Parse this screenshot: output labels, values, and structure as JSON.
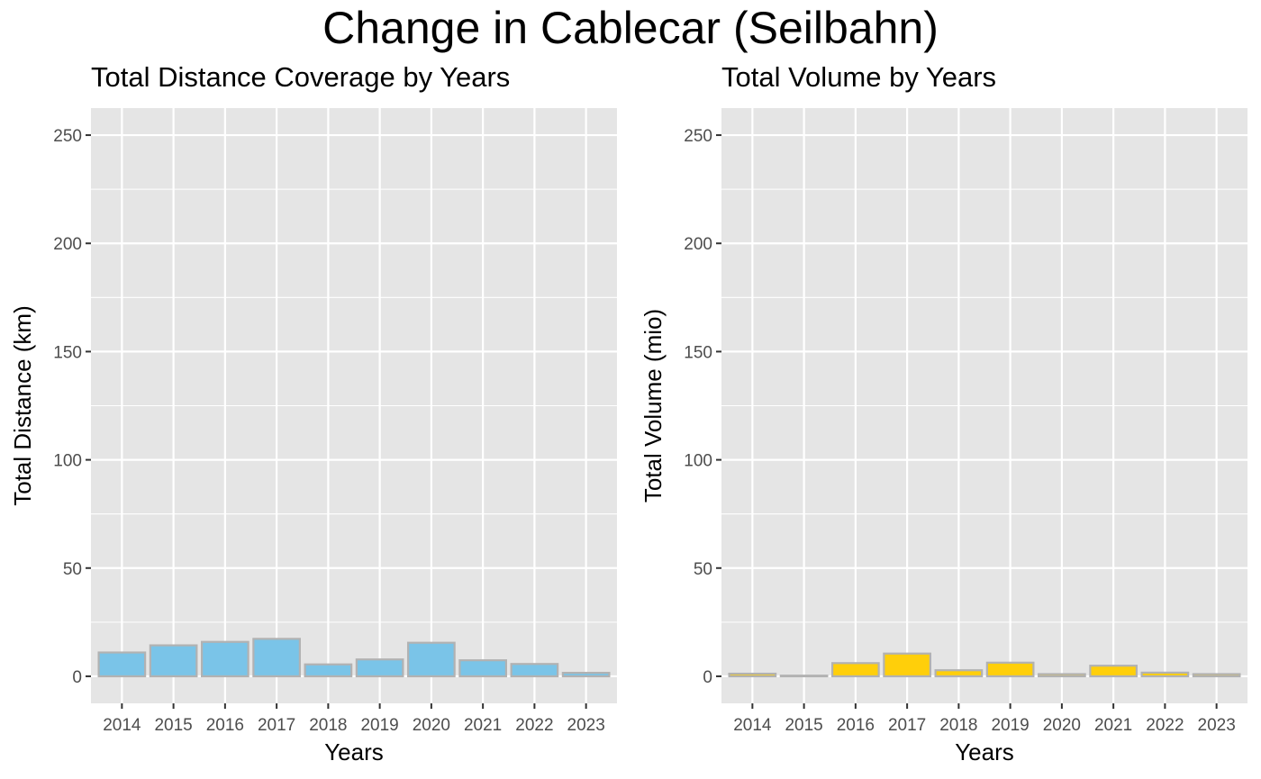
{
  "figure_title": "Change in Cablecar (Seilbahn)",
  "chart_data": [
    {
      "type": "bar",
      "title": "Total Distance Coverage by Years",
      "xlabel": "Years",
      "ylabel": "Total Distance (km)",
      "categories": [
        "2014",
        "2015",
        "2016",
        "2017",
        "2018",
        "2019",
        "2020",
        "2021",
        "2022",
        "2023"
      ],
      "values": [
        11,
        14.3,
        15.9,
        17.3,
        5.5,
        7.8,
        15.5,
        7.4,
        5.7,
        1.6
      ],
      "ylim": [
        -12.5,
        262.5
      ],
      "yticks": [
        0,
        50,
        100,
        150,
        200,
        250
      ],
      "grid": true,
      "bar_fill": "#7ac4e8",
      "bar_outline": "#b2b2b2",
      "panel_bg": "#e5e5e5"
    },
    {
      "type": "bar",
      "title": "Total Volume by Years",
      "xlabel": "Years",
      "ylabel": "Total Volume (mio)",
      "categories": [
        "2014",
        "2015",
        "2016",
        "2017",
        "2018",
        "2019",
        "2020",
        "2021",
        "2022",
        "2023"
      ],
      "values": [
        1.2,
        0.3,
        6.1,
        10.5,
        2.8,
        6.3,
        1.0,
        4.9,
        1.7,
        1.0
      ],
      "ylim": [
        -12.5,
        262.5
      ],
      "yticks": [
        0,
        50,
        100,
        150,
        200,
        250
      ],
      "grid": true,
      "bar_fill": "#ffcf0a",
      "bar_outline": "#b2b2b2",
      "panel_bg": "#e5e5e5"
    }
  ]
}
